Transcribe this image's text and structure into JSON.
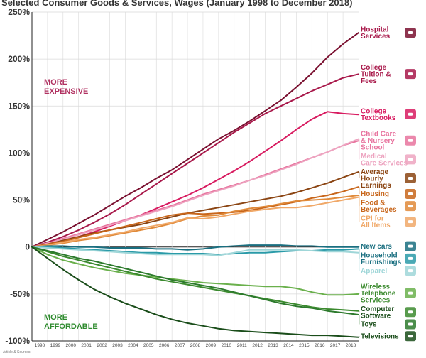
{
  "page_title": "Selected Consumer Goods & Services, Wages (January 1998 to December 2018)",
  "credit": "Article & Sources:",
  "region_labels": {
    "expensive": [
      "MORE",
      "EXPENSIVE"
    ],
    "affordable": [
      "MORE",
      "AFFORDABLE"
    ]
  },
  "colors": {
    "axis": "#222222",
    "grid": "#d9d9d9",
    "expensive_label": "#b03060",
    "affordable_label": "#2e8b2e"
  },
  "chart_data": {
    "type": "line",
    "title": "Selected Consumer Goods & Services, Wages (January 1998 to December 2018)",
    "xlabel": "",
    "ylabel": "",
    "x": [
      1998,
      1999,
      2000,
      2001,
      2002,
      2003,
      2004,
      2005,
      2006,
      2007,
      2008,
      2009,
      2010,
      2011,
      2012,
      2013,
      2014,
      2015,
      2016,
      2017,
      2018,
      2019
    ],
    "xlim": [
      1998,
      2019
    ],
    "ylim": [
      -100,
      250
    ],
    "y_ticks": [
      -100,
      -50,
      0,
      50,
      100,
      150,
      200,
      250
    ],
    "y_tick_labels": [
      "-100%",
      "-50%",
      "0",
      "50%",
      "100%",
      "150%",
      "200%",
      "250%"
    ],
    "x_tick_labels": [
      "1998",
      "1999",
      "2000",
      "2001",
      "2002",
      "2003",
      "2004",
      "2005",
      "2006",
      "2007",
      "2008",
      "2009",
      "2010",
      "2011",
      "2012",
      "2013",
      "2014",
      "2015",
      "2016",
      "2017",
      "2018"
    ],
    "grid": true,
    "legend": "right",
    "series": [
      {
        "name": "Hospital Services",
        "color": "#7a1030",
        "icon": "hospital-icon",
        "values": [
          0,
          8,
          16,
          25,
          34,
          44,
          54,
          63,
          73,
          82,
          93,
          104,
          115,
          124,
          134,
          145,
          156,
          170,
          185,
          202,
          216,
          228
        ]
      },
      {
        "name": "College Tuition & Fees",
        "color": "#a8184a",
        "icon": "graduation-cap-icon",
        "values": [
          0,
          5,
          11,
          18,
          26,
          35,
          45,
          56,
          67,
          78,
          89,
          100,
          111,
          122,
          132,
          142,
          150,
          158,
          166,
          173,
          180,
          184
        ]
      },
      {
        "name": "College Textbooks",
        "color": "#d81b60",
        "icon": "books-icon",
        "values": [
          0,
          3,
          7,
          11,
          16,
          22,
          28,
          34,
          41,
          48,
          55,
          63,
          72,
          81,
          91,
          102,
          113,
          125,
          136,
          144,
          142,
          141
        ]
      },
      {
        "name": "Child Care & Nursery School",
        "color": "#e8739e",
        "icon": "child-care-icon",
        "values": [
          0,
          4,
          9,
          14,
          19,
          24,
          29,
          34,
          39,
          44,
          50,
          56,
          61,
          66,
          71,
          77,
          83,
          89,
          95,
          101,
          108,
          113
        ]
      },
      {
        "name": "Medical Care Services",
        "color": "#eda4c0",
        "icon": "medical-icon",
        "values": [
          0,
          4,
          8,
          13,
          18,
          23,
          28,
          33,
          38,
          43,
          49,
          55,
          60,
          65,
          71,
          76,
          82,
          88,
          95,
          101,
          108,
          115
        ]
      },
      {
        "name": "Average Hourly Earnings",
        "color": "#8b4513",
        "icon": "money-clock-icon",
        "values": [
          0,
          3,
          7,
          11,
          15,
          18,
          21,
          24,
          28,
          32,
          36,
          39,
          42,
          45,
          48,
          51,
          54,
          58,
          63,
          68,
          74,
          80
        ]
      },
      {
        "name": "Housing",
        "color": "#c8661b",
        "icon": "house-icon",
        "values": [
          0,
          3,
          6,
          10,
          14,
          18,
          22,
          26,
          30,
          34,
          36,
          35,
          36,
          37,
          39,
          42,
          45,
          48,
          52,
          55,
          59,
          64
        ]
      },
      {
        "name": "Food & Beverages",
        "color": "#e08a3a",
        "icon": "food-icon",
        "values": [
          0,
          2,
          4,
          7,
          9,
          12,
          15,
          18,
          21,
          25,
          30,
          33,
          34,
          38,
          41,
          43,
          46,
          49,
          50,
          51,
          53,
          55
        ]
      },
      {
        "name": "CPI for All Items",
        "color": "#f0a868",
        "icon": "price-tag-icon",
        "values": [
          0,
          2,
          5,
          8,
          10,
          13,
          16,
          20,
          23,
          26,
          31,
          30,
          32,
          35,
          38,
          40,
          42,
          42,
          44,
          47,
          50,
          53
        ]
      },
      {
        "name": "New cars",
        "color": "#1a6f80",
        "icon": "car-icon",
        "values": [
          0,
          1,
          1,
          0,
          0,
          -1,
          -1,
          -1,
          -2,
          -2,
          -3,
          -2,
          0,
          1,
          2,
          2,
          2,
          1,
          1,
          0,
          0,
          0
        ]
      },
      {
        "name": "Household Furnishings",
        "color": "#2a9aa8",
        "icon": "furniture-icon",
        "values": [
          0,
          0,
          -1,
          -2,
          -3,
          -4,
          -5,
          -6,
          -6,
          -7,
          -7,
          -7,
          -8,
          -7,
          -6,
          -6,
          -5,
          -4,
          -4,
          -3,
          -3,
          -2
        ]
      },
      {
        "name": "Apparel",
        "color": "#9fd6d8",
        "icon": "shirt-icon",
        "values": [
          0,
          -1,
          -2,
          -3,
          -4,
          -5,
          -6,
          -7,
          -8,
          -8,
          -8,
          -8,
          -9,
          -6,
          -3,
          -3,
          -3,
          -3,
          -4,
          -5,
          -5,
          -6
        ]
      },
      {
        "name": "Wireless Telephone Services",
        "color": "#6ab04c",
        "icon": "phone-icon",
        "values": [
          0,
          -8,
          -14,
          -18,
          -22,
          -25,
          -28,
          -30,
          -32,
          -34,
          -36,
          -38,
          -39,
          -40,
          -41,
          -42,
          -42,
          -44,
          -48,
          -51,
          -51,
          -50
        ]
      },
      {
        "name": "Computer Software",
        "color": "#3b8a2e",
        "icon": "computer-icon",
        "values": [
          0,
          -5,
          -10,
          -14,
          -18,
          -22,
          -26,
          -30,
          -34,
          -37,
          -40,
          -43,
          -46,
          -49,
          -52,
          -55,
          -58,
          -61,
          -64,
          -66,
          -67,
          -68
        ]
      },
      {
        "name": "Toys",
        "color": "#2d7a2d",
        "icon": "toy-icon",
        "values": [
          0,
          -4,
          -8,
          -12,
          -15,
          -19,
          -23,
          -27,
          -31,
          -35,
          -38,
          -41,
          -44,
          -48,
          -52,
          -56,
          -60,
          -63,
          -65,
          -68,
          -70,
          -72
        ]
      },
      {
        "name": "Televisions",
        "color": "#1a4d1a",
        "icon": "tv-icon",
        "values": [
          0,
          -12,
          -24,
          -35,
          -45,
          -53,
          -60,
          -66,
          -72,
          -77,
          -81,
          -84,
          -87,
          -89,
          -90,
          -91,
          -92,
          -93,
          -94,
          -94,
          -95,
          -96
        ]
      }
    ]
  },
  "legend_labels": [
    {
      "series": 0,
      "lines": [
        "Hospital",
        "Services"
      ],
      "color": "#a8184a"
    },
    {
      "series": 1,
      "lines": [
        "College",
        "Tuition &",
        "Fees"
      ],
      "color": "#a8184a"
    },
    {
      "series": 2,
      "lines": [
        "College",
        "Textbooks"
      ],
      "color": "#d81b60"
    },
    {
      "series": 3,
      "lines": [
        "Child Care",
        "& Nursery",
        "School"
      ],
      "color": "#e8739e"
    },
    {
      "series": 4,
      "lines": [
        "Medical",
        "Care Services"
      ],
      "color": "#eda4c0"
    },
    {
      "series": 5,
      "lines": [
        "Average",
        "Hourly",
        "Earnings"
      ],
      "color": "#8b4513"
    },
    {
      "series": 6,
      "lines": [
        "Housing"
      ],
      "color": "#c8661b"
    },
    {
      "series": 7,
      "lines": [
        "Food &",
        "Beverages"
      ],
      "color": "#c8661b"
    },
    {
      "series": 8,
      "lines": [
        "CPI for",
        "All Items"
      ],
      "color": "#f0a868"
    },
    {
      "series": 9,
      "lines": [
        "New cars"
      ],
      "color": "#1a6f80"
    },
    {
      "series": 10,
      "lines": [
        "Household",
        "Furnishings"
      ],
      "color": "#1a6f80"
    },
    {
      "series": 11,
      "lines": [
        "Apparel"
      ],
      "color": "#9fd6d8"
    },
    {
      "series": 12,
      "lines": [
        "Wireless",
        "Telephone",
        "Services"
      ],
      "color": "#3b8a2e"
    },
    {
      "series": 13,
      "lines": [
        "Computer",
        "Software"
      ],
      "color": "#1a4d1a"
    },
    {
      "series": 14,
      "lines": [
        "Toys"
      ],
      "color": "#1a4d1a"
    },
    {
      "series": 15,
      "lines": [
        "Televisions"
      ],
      "color": "#1a4d1a"
    }
  ]
}
